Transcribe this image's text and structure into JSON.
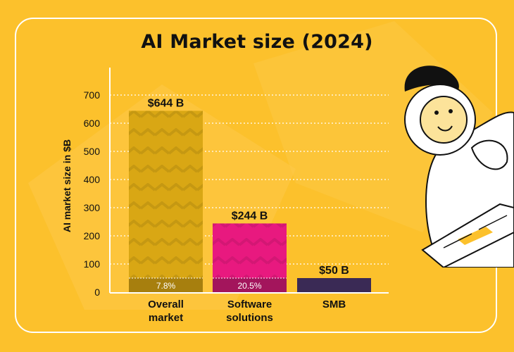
{
  "title": "AI Market size (2024)",
  "colors": {
    "background": "#fcc12c",
    "card_border": "#ffffff",
    "overall_bar": "#d9a714",
    "overall_base": "#a77f0e",
    "software_bar": "#e8197f",
    "software_base": "#a3155c",
    "smb_bar": "#3a2a55",
    "grid": "#ffffff",
    "text": "#111111"
  },
  "chart_data": {
    "type": "bar",
    "ylabel": "AI market size in $B",
    "xlabel": "",
    "ylim": [
      0,
      750
    ],
    "yticks": [
      0,
      100,
      200,
      300,
      400,
      500,
      600,
      700
    ],
    "grid": true,
    "categories": [
      {
        "lines": [
          "Overall",
          "market"
        ]
      },
      {
        "lines": [
          "Software",
          "solutions"
        ]
      },
      {
        "lines": [
          "SMB"
        ]
      }
    ],
    "values": [
      644,
      244,
      50
    ],
    "value_labels": [
      "$644 B",
      "$244 B",
      "$50 B"
    ],
    "base_segments": [
      {
        "value": 50,
        "label": "7.8%"
      },
      {
        "value": 50,
        "label": "20.5%"
      },
      null
    ]
  }
}
